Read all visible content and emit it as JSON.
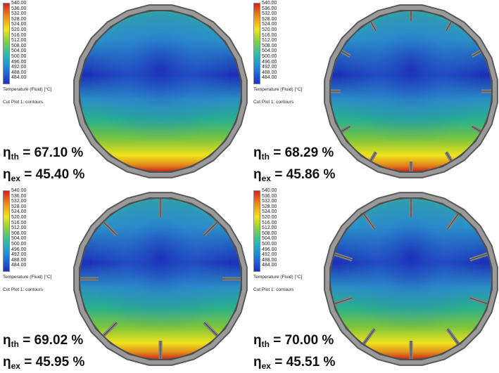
{
  "legend_ticks": [
    "540.00",
    "536.00",
    "532.00",
    "528.00",
    "524.00",
    "520.00",
    "516.00",
    "512.00",
    "508.00",
    "504.00",
    "500.00",
    "496.00",
    "492.00",
    "488.00",
    "484.00"
  ],
  "legend_quantity": "Temperature (Fluid) [°C]",
  "cut_plot_label": "Cut Plot 1: contours",
  "eta_symbol": "η",
  "th_sub": "th",
  "ex_sub": "ex",
  "panels": [
    {
      "fins": 0,
      "eta_th": "= 67.10 %",
      "eta_ex": "= 45.40 %"
    },
    {
      "fins": 12,
      "eta_th": "= 68.29 %",
      "eta_ex": "= 45.86 %"
    },
    {
      "fins": 8,
      "eta_th": "= 69.02 %",
      "eta_ex": "= 45.95 %"
    },
    {
      "fins": 10,
      "eta_th": "= 70.00 %",
      "eta_ex": "= 45.51 %"
    }
  ],
  "colors": {
    "cold": "#1c2fb8",
    "mid": "#29b08c",
    "warm": "#f0e21c",
    "hot": "#d02818",
    "shell": "#5a5a5a",
    "fin": "#808080"
  }
}
